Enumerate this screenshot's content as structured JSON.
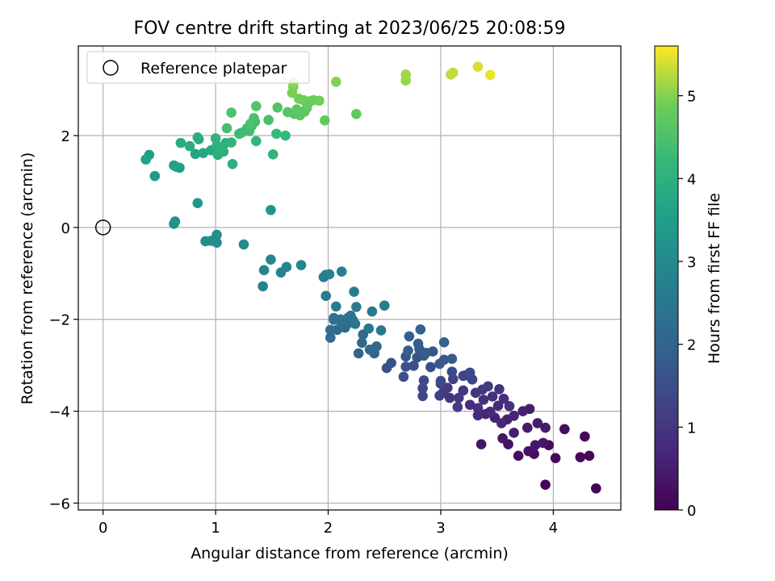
{
  "chart_data": {
    "type": "scatter",
    "title": "FOV centre drift starting at 2023/06/25 20:08:59",
    "xlabel": "Angular distance from reference (arcmin)",
    "ylabel": "Rotation from reference (arcmin)",
    "xlim": [
      -0.22,
      4.6
    ],
    "ylim": [
      -6.15,
      3.95
    ],
    "x_ticks": [
      0,
      1,
      2,
      3,
      4
    ],
    "x_tick_labels": [
      "0",
      "1",
      "2",
      "3",
      "4"
    ],
    "y_ticks": [
      -6,
      -4,
      -2,
      0,
      2
    ],
    "y_tick_labels": [
      "−6",
      "−4",
      "−2",
      "0",
      "2"
    ],
    "grid": true,
    "legend": {
      "position": "top-left",
      "entries": [
        {
          "label": "Reference platepar",
          "marker": "open-circle"
        }
      ]
    },
    "reference_point": {
      "x": 0,
      "y": 0
    },
    "colorbar": {
      "label": "Hours from first FF file",
      "colormap": "viridis",
      "range": [
        0,
        5.6
      ],
      "ticks": [
        0,
        1,
        2,
        3,
        4,
        5
      ],
      "tick_labels": [
        "0",
        "1",
        "2",
        "3",
        "4",
        "5"
      ]
    },
    "series": [
      {
        "points": [
          [
            4.38,
            -5.68,
            0.05
          ],
          [
            3.93,
            -5.6,
            0.05
          ],
          [
            4.32,
            -4.97,
            0.1
          ],
          [
            4.24,
            -5.0,
            0.1
          ],
          [
            4.28,
            -4.55,
            0.15
          ],
          [
            4.02,
            -5.02,
            0.15
          ],
          [
            4.1,
            -4.39,
            0.2
          ],
          [
            3.96,
            -4.74,
            0.2
          ],
          [
            3.83,
            -4.93,
            0.25
          ],
          [
            3.69,
            -4.97,
            0.25
          ],
          [
            3.78,
            -4.87,
            0.3
          ],
          [
            3.6,
            -4.72,
            0.3
          ],
          [
            3.55,
            -4.59,
            0.35
          ],
          [
            3.36,
            -4.72,
            0.35
          ],
          [
            3.84,
            -4.74,
            0.4
          ],
          [
            3.91,
            -4.69,
            0.4
          ],
          [
            3.77,
            -4.36,
            0.45
          ],
          [
            3.93,
            -4.36,
            0.45
          ],
          [
            3.86,
            -4.26,
            0.5
          ],
          [
            3.79,
            -3.95,
            0.5
          ],
          [
            3.73,
            -4.0,
            0.55
          ],
          [
            3.65,
            -4.47,
            0.55
          ],
          [
            3.48,
            -4.14,
            0.6
          ],
          [
            3.59,
            -4.18,
            0.6
          ],
          [
            3.65,
            -4.1,
            0.65
          ],
          [
            3.4,
            -4.06,
            0.65
          ],
          [
            3.54,
            -4.26,
            0.7
          ],
          [
            3.33,
            -4.09,
            0.7
          ],
          [
            3.44,
            -4.01,
            0.75
          ],
          [
            3.51,
            -3.88,
            0.75
          ],
          [
            3.56,
            -3.73,
            0.8
          ],
          [
            3.26,
            -3.86,
            0.8
          ],
          [
            3.38,
            -3.75,
            0.85
          ],
          [
            3.33,
            -3.93,
            0.85
          ],
          [
            3.61,
            -3.89,
            0.9
          ],
          [
            3.46,
            -3.68,
            0.9
          ],
          [
            3.52,
            -3.52,
            0.95
          ],
          [
            3.31,
            -3.6,
            0.95
          ],
          [
            3.2,
            -3.55,
            1.0
          ],
          [
            3.08,
            -3.71,
            1.0
          ],
          [
            3.02,
            -3.6,
            1.05
          ],
          [
            3.37,
            -3.53,
            1.05
          ],
          [
            3.42,
            -3.46,
            1.1
          ],
          [
            3.16,
            -3.71,
            1.1
          ],
          [
            3.06,
            -3.49,
            1.15
          ],
          [
            3.15,
            -3.91,
            1.15
          ],
          [
            2.99,
            -3.66,
            1.2
          ],
          [
            3.0,
            -3.4,
            1.2
          ],
          [
            3.11,
            -3.3,
            1.25
          ],
          [
            3.2,
            -3.23,
            1.25
          ],
          [
            3.28,
            -3.31,
            1.3
          ],
          [
            3.22,
            -3.22,
            1.3
          ],
          [
            2.84,
            -3.67,
            1.35
          ],
          [
            2.84,
            -3.5,
            1.35
          ],
          [
            2.85,
            -3.33,
            1.4
          ],
          [
            3.0,
            -3.34,
            1.4
          ],
          [
            3.1,
            -3.14,
            1.45
          ],
          [
            3.26,
            -3.16,
            1.45
          ],
          [
            2.91,
            -3.04,
            1.5
          ],
          [
            2.76,
            -3.01,
            1.5
          ],
          [
            2.67,
            -3.25,
            1.55
          ],
          [
            2.69,
            -3.03,
            1.55
          ],
          [
            2.56,
            -2.95,
            1.6
          ],
          [
            2.52,
            -3.06,
            1.6
          ],
          [
            2.69,
            -2.81,
            1.65
          ],
          [
            2.79,
            -2.83,
            1.65
          ],
          [
            2.85,
            -2.79,
            1.7
          ],
          [
            2.93,
            -2.7,
            1.7
          ],
          [
            2.99,
            -2.97,
            1.75
          ],
          [
            3.03,
            -2.88,
            1.75
          ],
          [
            3.1,
            -2.86,
            1.8
          ],
          [
            2.81,
            -2.65,
            1.8
          ],
          [
            2.87,
            -2.73,
            1.85
          ],
          [
            2.71,
            -2.68,
            1.85
          ],
          [
            2.8,
            -2.53,
            1.9
          ],
          [
            2.72,
            -2.37,
            1.9
          ],
          [
            2.82,
            -2.22,
            1.95
          ],
          [
            3.03,
            -2.5,
            1.95
          ],
          [
            2.27,
            -2.74,
            2.0
          ],
          [
            2.41,
            -2.74,
            2.0
          ],
          [
            2.43,
            -2.59,
            2.05
          ],
          [
            2.3,
            -2.51,
            2.05
          ],
          [
            2.37,
            -2.66,
            2.1
          ],
          [
            2.31,
            -2.33,
            2.1
          ],
          [
            2.08,
            -2.23,
            2.15
          ],
          [
            2.15,
            -2.18,
            2.15
          ],
          [
            2.02,
            -2.23,
            2.2
          ],
          [
            2.02,
            -2.4,
            2.2
          ],
          [
            2.12,
            -2.1,
            2.25
          ],
          [
            2.17,
            -2.1,
            2.25
          ],
          [
            2.05,
            -2.01,
            2.3
          ],
          [
            2.05,
            -1.97,
            2.3
          ],
          [
            2.11,
            -2.0,
            2.35
          ],
          [
            2.18,
            -1.96,
            2.35
          ],
          [
            2.2,
            -1.92,
            2.4
          ],
          [
            2.22,
            -2.02,
            2.4
          ],
          [
            2.24,
            -2.1,
            2.45
          ],
          [
            2.36,
            -2.2,
            2.45
          ],
          [
            2.47,
            -2.24,
            2.5
          ],
          [
            2.39,
            -1.83,
            2.5
          ],
          [
            2.25,
            -1.73,
            2.55
          ],
          [
            2.07,
            -1.72,
            2.55
          ],
          [
            2.5,
            -1.7,
            2.6
          ],
          [
            2.23,
            -1.4,
            2.6
          ],
          [
            1.98,
            -1.49,
            2.65
          ],
          [
            1.96,
            -1.08,
            2.7
          ],
          [
            1.98,
            -1.03,
            2.7
          ],
          [
            2.01,
            -1.02,
            2.75
          ],
          [
            2.12,
            -0.96,
            2.75
          ],
          [
            1.42,
            -1.28,
            2.8
          ],
          [
            1.43,
            -0.93,
            2.8
          ],
          [
            1.58,
            -0.98,
            2.85
          ],
          [
            1.63,
            -0.86,
            2.85
          ],
          [
            1.76,
            -0.82,
            2.9
          ],
          [
            1.49,
            -0.7,
            2.9
          ],
          [
            1.25,
            -0.37,
            3.0
          ],
          [
            1.01,
            -0.33,
            3.0
          ],
          [
            0.91,
            -0.3,
            3.05
          ],
          [
            0.96,
            -0.29,
            3.05
          ],
          [
            1.0,
            -0.28,
            3.1
          ],
          [
            1.01,
            -0.16,
            3.1
          ],
          [
            0.63,
            0.08,
            3.15
          ],
          [
            0.64,
            0.13,
            3.2
          ],
          [
            1.49,
            0.38,
            3.25
          ],
          [
            0.84,
            0.53,
            3.3
          ],
          [
            0.46,
            1.12,
            3.4
          ],
          [
            0.63,
            1.35,
            3.45
          ],
          [
            0.68,
            1.3,
            3.5
          ],
          [
            0.41,
            1.58,
            3.55
          ],
          [
            0.38,
            1.48,
            3.6
          ],
          [
            0.65,
            1.32,
            3.6
          ],
          [
            0.82,
            1.6,
            3.65
          ],
          [
            0.89,
            1.62,
            3.7
          ],
          [
            0.96,
            1.68,
            3.75
          ],
          [
            0.85,
            1.92,
            3.8
          ],
          [
            0.84,
            1.96,
            3.85
          ],
          [
            0.69,
            1.84,
            3.85
          ],
          [
            0.77,
            1.77,
            3.9
          ],
          [
            1.02,
            1.58,
            3.95
          ],
          [
            1.07,
            1.65,
            3.95
          ],
          [
            1.15,
            1.38,
            4.0
          ],
          [
            1.01,
            1.78,
            4.0
          ],
          [
            1.04,
            1.73,
            4.05
          ],
          [
            1.09,
            1.84,
            4.05
          ],
          [
            1.14,
            1.85,
            4.1
          ],
          [
            1.0,
            1.94,
            4.1
          ],
          [
            1.36,
            1.88,
            4.15
          ],
          [
            1.51,
            1.59,
            4.15
          ],
          [
            1.62,
            2.0,
            4.2
          ],
          [
            1.54,
            2.04,
            4.25
          ],
          [
            1.21,
            2.04,
            4.25
          ],
          [
            1.23,
            2.06,
            4.3
          ],
          [
            1.28,
            2.16,
            4.3
          ],
          [
            1.3,
            2.1,
            4.35
          ],
          [
            1.32,
            2.21,
            4.35
          ],
          [
            1.1,
            2.16,
            4.4
          ],
          [
            1.35,
            2.3,
            4.4
          ],
          [
            1.47,
            2.34,
            4.45
          ],
          [
            1.34,
            2.38,
            4.45
          ],
          [
            1.31,
            2.26,
            4.5
          ],
          [
            1.14,
            2.5,
            4.5
          ],
          [
            1.36,
            2.64,
            4.55
          ],
          [
            1.55,
            2.61,
            4.55
          ],
          [
            1.64,
            2.51,
            4.6
          ],
          [
            1.7,
            2.47,
            4.6
          ],
          [
            1.75,
            2.44,
            4.65
          ],
          [
            1.79,
            2.52,
            4.65
          ],
          [
            1.72,
            2.57,
            4.7
          ],
          [
            1.81,
            2.6,
            4.7
          ],
          [
            1.97,
            2.33,
            4.75
          ],
          [
            2.25,
            2.47,
            4.75
          ],
          [
            1.82,
            2.69,
            4.8
          ],
          [
            1.84,
            2.75,
            4.8
          ],
          [
            1.87,
            2.77,
            4.85
          ],
          [
            1.78,
            2.77,
            4.85
          ],
          [
            1.92,
            2.76,
            4.9
          ],
          [
            1.74,
            2.8,
            4.9
          ],
          [
            1.68,
            2.93,
            4.95
          ],
          [
            1.69,
            3.06,
            4.95
          ],
          [
            2.07,
            3.17,
            5.0
          ],
          [
            1.69,
            3.15,
            5.05
          ],
          [
            2.69,
            3.2,
            5.1
          ],
          [
            2.69,
            3.33,
            5.15
          ],
          [
            3.09,
            3.33,
            5.25
          ],
          [
            3.11,
            3.37,
            5.3
          ],
          [
            3.33,
            3.5,
            5.4
          ],
          [
            3.44,
            3.32,
            5.5
          ]
        ]
      }
    ]
  }
}
